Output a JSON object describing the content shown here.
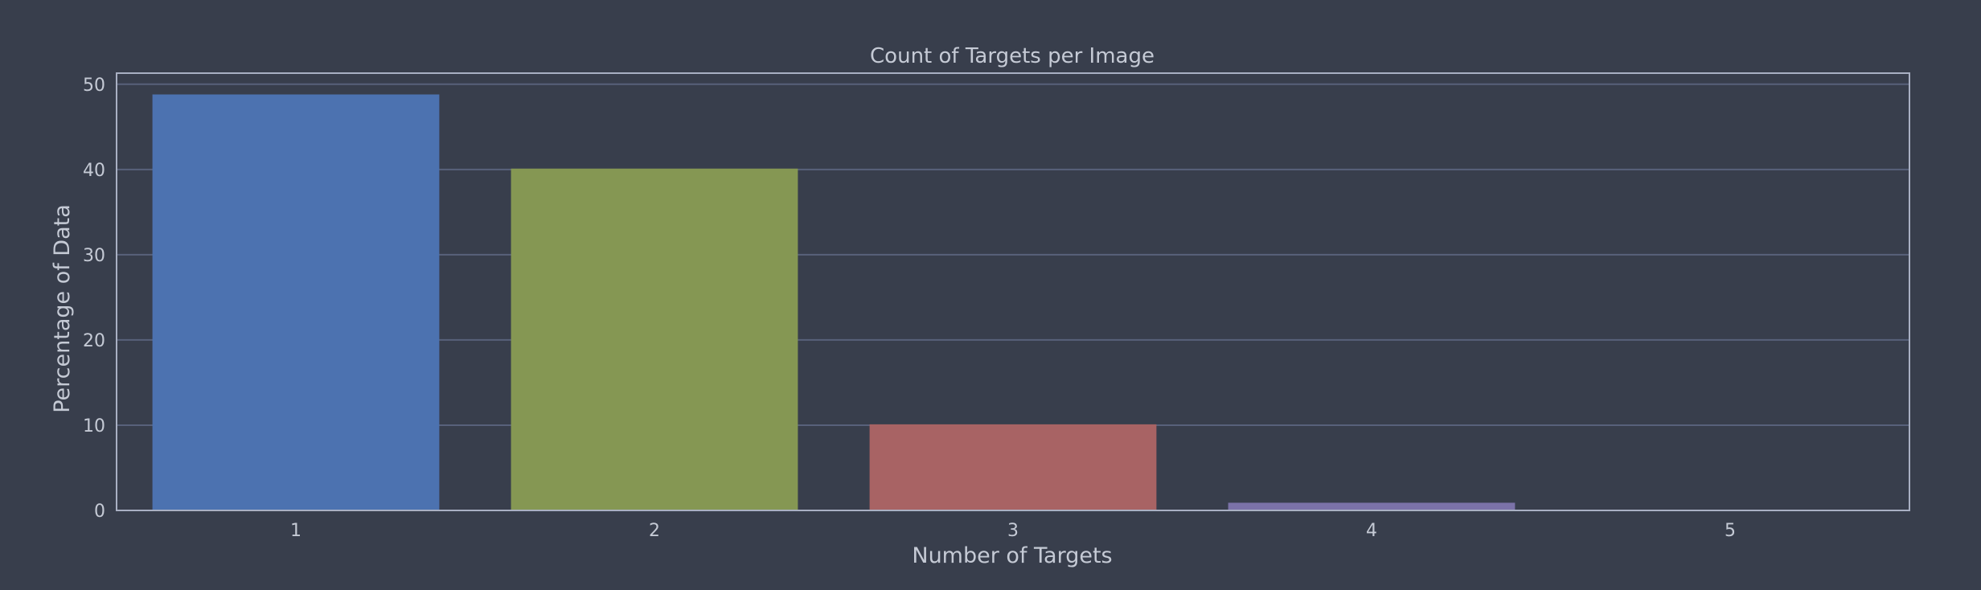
{
  "chart_data": {
    "type": "bar",
    "title": "Count of Targets per Image",
    "xlabel": "Number of Targets",
    "ylabel": "Percentage of Data",
    "categories": [
      "1",
      "2",
      "3",
      "4",
      "5"
    ],
    "values": [
      48.8,
      40.1,
      10.1,
      0.9,
      0.05
    ],
    "ylim": [
      0,
      51.3
    ],
    "yticks": [
      "0",
      "10",
      "20",
      "30",
      "40",
      "50"
    ],
    "ytick_values": [
      0,
      10,
      20,
      30,
      40,
      50
    ],
    "grid": true,
    "legend": "none",
    "colors": [
      "#4c72b0",
      "#859753",
      "#a86364",
      "#7b72a8",
      "#6c8fae"
    ],
    "background": "#383e4c",
    "text_color": "#c5cad5",
    "grid_color": "#58617a",
    "axis_color": "#a9b0c3"
  }
}
